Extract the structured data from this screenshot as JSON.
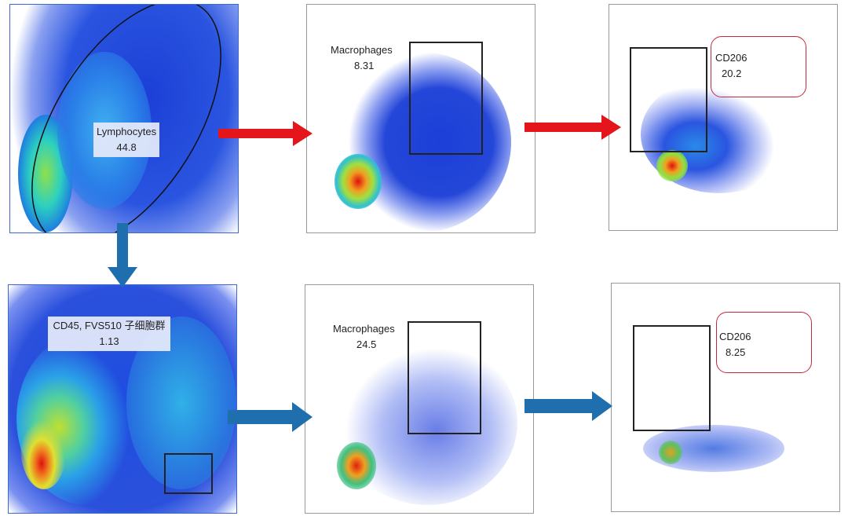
{
  "panels": [
    {
      "gate_name": "Lymphocytes",
      "value": "44.8"
    },
    {
      "gate_name": "Macrophages",
      "value": "8.31"
    },
    {
      "gate_name": "CD206",
      "value": "20.2"
    },
    {
      "gate_name": "CD45, FVS510 子细胞群",
      "value": "1.13"
    },
    {
      "gate_name": "Macrophages",
      "value": "24.5"
    },
    {
      "gate_name": "CD206",
      "value": "8.25"
    }
  ],
  "colors": {
    "red_arrow": "#e5161b",
    "blue_arrow": "#1f6fae",
    "gate_box": "#c8283a"
  }
}
